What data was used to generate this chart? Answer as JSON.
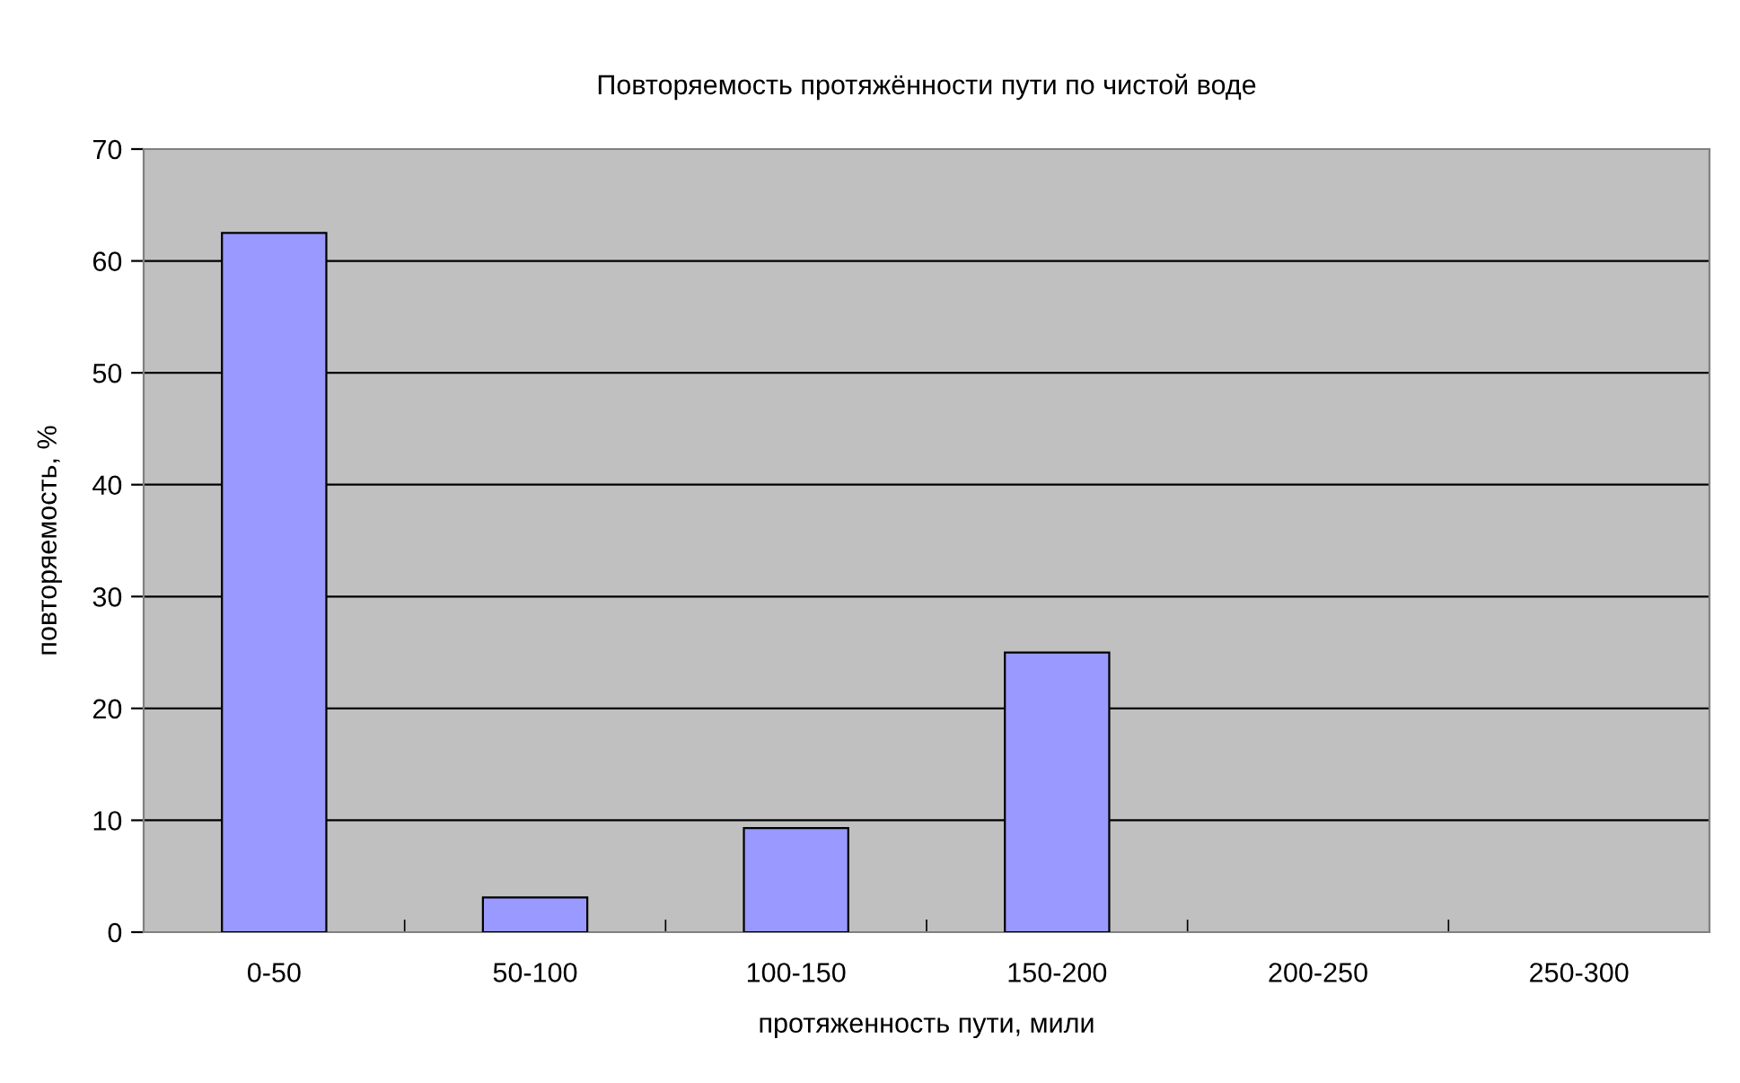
{
  "chart_data": {
    "type": "bar",
    "title": "Повторяемость протяжённости пути по чистой воде",
    "xlabel": "протяженность пути, мили",
    "ylabel": "повторяемость, %",
    "categories": [
      "0-50",
      "50-100",
      "100-150",
      "150-200",
      "200-250",
      "250-300"
    ],
    "values": [
      62.5,
      3.1,
      9.3,
      25.0,
      0,
      0
    ],
    "color": "#9999ff",
    "ylim": [
      0,
      70
    ],
    "yticks": [
      0,
      10,
      20,
      30,
      40,
      50,
      60,
      70
    ],
    "grid": "y",
    "legend": false
  }
}
